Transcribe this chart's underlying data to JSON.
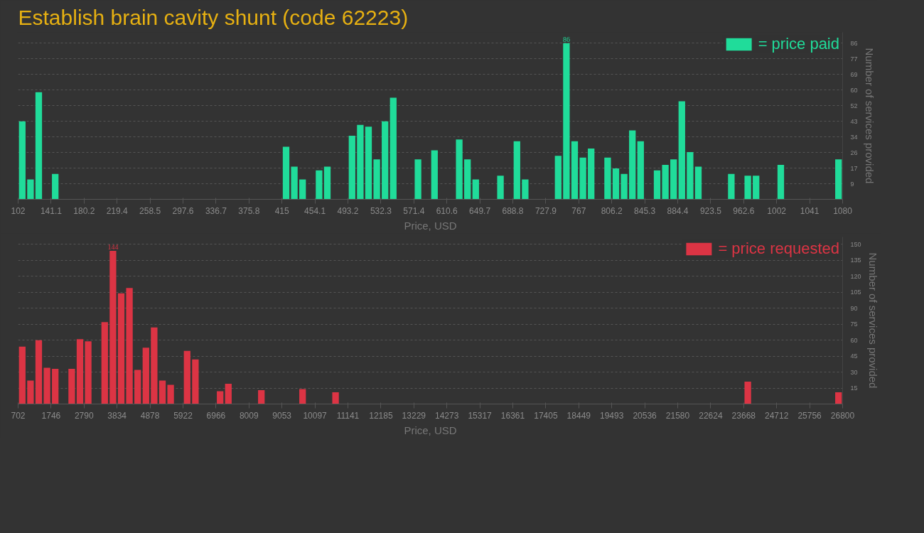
{
  "chart_data": [
    {
      "type": "histogram",
      "title": "Establish brain cavity shunt (code 62223)",
      "xlabel": "Price, USD",
      "ylabel": "Number of services provided",
      "bins": [
        102,
        111.78,
        121.56,
        131.34,
        141.12,
        150.9,
        160.68,
        170.46,
        180.24,
        190.02,
        199.8,
        209.58,
        219.36,
        229.14,
        238.92,
        248.7,
        258.48,
        268.26,
        278.04,
        287.82,
        297.6,
        307.38,
        317.16,
        326.94,
        336.72,
        346.5,
        356.28,
        366.06,
        375.84,
        385.62,
        395.4,
        405.18,
        414.96,
        424.74,
        434.52,
        444.3,
        454.08,
        463.86,
        473.64,
        483.42,
        493.2,
        502.98,
        512.76,
        522.54,
        532.32,
        542.1,
        551.88,
        561.66,
        571.44,
        581.22,
        591,
        600.78,
        610.56,
        620.34,
        630.12,
        639.9,
        649.68,
        659.46,
        669.24,
        679.02,
        688.8,
        698.58,
        708.36,
        718.14,
        727.92,
        737.7,
        747.48,
        757.26,
        767.04,
        776.82,
        786.6,
        796.38,
        806.16,
        815.94,
        825.72,
        835.5,
        845.28,
        855.06,
        864.84,
        874.62,
        884.4,
        894.18,
        903.96,
        913.74,
        923.52,
        933.3,
        943.08,
        952.86,
        962.64,
        972.42,
        982.2,
        991.98,
        1001.76,
        1011.54,
        1021.32,
        1031.1,
        1040.88,
        1050.66,
        1060.44,
        1070.22,
        1080
      ],
      "series": [
        {
          "name": "= price paid",
          "color": "#20dc9a",
          "values": [
            43,
            11,
            59,
            0,
            14,
            0,
            0,
            0,
            0,
            0,
            0,
            0,
            0,
            0,
            0,
            0,
            0,
            0,
            0,
            0,
            0,
            0,
            0,
            0,
            0,
            0,
            0,
            0,
            0,
            0,
            0,
            0,
            29,
            18,
            11,
            0,
            16,
            18,
            0,
            0,
            35,
            41,
            40,
            22,
            43,
            56,
            0,
            0,
            22,
            0,
            27,
            0,
            0,
            33,
            22,
            11,
            0,
            0,
            13,
            0,
            32,
            11,
            0,
            0,
            0,
            24,
            86,
            32,
            23,
            28,
            0,
            23,
            17,
            14,
            38,
            32,
            0,
            16,
            19,
            22,
            54,
            26,
            18,
            0,
            0,
            0,
            14,
            0,
            13,
            13,
            0,
            0,
            19,
            0,
            0,
            0,
            0,
            0,
            0,
            22
          ],
          "value_labels": [
            null,
            null,
            null,
            null,
            null,
            null,
            null,
            null,
            null,
            null,
            null,
            null,
            null,
            null,
            null,
            null,
            null,
            null,
            null,
            null,
            null,
            null,
            null,
            null,
            null,
            null,
            null,
            null,
            null,
            null,
            null,
            null,
            null,
            null,
            null,
            null,
            null,
            null,
            null,
            null,
            null,
            null,
            null,
            null,
            null,
            null,
            null,
            null,
            null,
            null,
            null,
            null,
            null,
            null,
            null,
            null,
            null,
            null,
            null,
            null,
            null,
            null,
            null,
            null,
            null,
            null,
            "86",
            null,
            null,
            null,
            null,
            null,
            null,
            null,
            null,
            null,
            null,
            null,
            null,
            null,
            null,
            null,
            null,
            null,
            null,
            null,
            null,
            null,
            null,
            null,
            null,
            null,
            null,
            null,
            null,
            null,
            null,
            null,
            null,
            null
          ]
        }
      ],
      "xlim": [
        102,
        1080
      ],
      "xticks": [
        102,
        {
          "value": 141.12,
          "label": "141.1"
        },
        {
          "value": 180.24,
          "label": "180.2"
        },
        {
          "value": 219.36,
          "label": "219.4"
        },
        {
          "value": 258.48,
          "label": "258.5"
        },
        {
          "value": 297.6,
          "label": "297.6"
        },
        {
          "value": 336.72,
          "label": "336.7"
        },
        {
          "value": 375.84,
          "label": "375.8"
        },
        {
          "value": 414.96,
          "label": "415"
        },
        {
          "value": 454.08,
          "label": "454.1"
        },
        {
          "value": 493.2,
          "label": "493.2"
        },
        {
          "value": 532.32,
          "label": "532.3"
        },
        {
          "value": 571.44,
          "label": "571.4"
        },
        {
          "value": 610.56,
          "label": "610.6"
        },
        {
          "value": 649.68,
          "label": "649.7"
        },
        {
          "value": 688.8,
          "label": "688.8"
        },
        {
          "value": 727.92,
          "label": "727.9"
        },
        {
          "value": 767.04,
          "label": "767"
        },
        {
          "value": 806.16,
          "label": "806.2"
        },
        {
          "value": 845.28,
          "label": "845.3"
        },
        {
          "value": 884.4,
          "label": "884.4"
        },
        {
          "value": 923.52,
          "label": "923.5"
        },
        {
          "value": 962.64,
          "label": "962.6"
        },
        {
          "value": 1001.76,
          "label": "1002"
        },
        {
          "value": 1040.88,
          "label": "1041"
        },
        1080
      ],
      "ylim": [
        0,
        92
      ],
      "yticks": [
        {
          "value": 8.6,
          "label": "9"
        },
        {
          "value": 17.2,
          "label": "17"
        },
        {
          "value": 25.8,
          "label": "26"
        },
        {
          "value": 34.4,
          "label": "34"
        },
        43,
        {
          "value": 51.6,
          "label": "52"
        },
        {
          "value": 60.2,
          "label": "60"
        },
        {
          "value": 68.8,
          "label": "69"
        },
        {
          "value": 77.4,
          "label": "77"
        },
        86
      ],
      "grid": "y",
      "legend": "top right"
    },
    {
      "type": "histogram",
      "xlabel": "Price, USD",
      "ylabel": "Number of services provided",
      "bins": [
        702,
        962.98,
        1223.96,
        1484.94,
        1745.92,
        2006.9,
        2267.88,
        2528.86,
        2789.84,
        3050.82,
        3311.8,
        3572.78,
        3833.76,
        4094.74,
        4355.72,
        4616.7,
        4877.68,
        5138.66,
        5399.64,
        5660.62,
        5921.6,
        6182.58,
        6443.56,
        6704.54,
        6965.52,
        7226.5,
        7487.48,
        7748.46,
        8009.44,
        8270.42,
        8531.4,
        8792.38,
        9053.36,
        9314.34,
        9575.32,
        9836.3,
        10097.28,
        10358.26,
        10619.24,
        10880.22,
        11141.2,
        11402.18,
        11663.16,
        11924.14,
        12185.12,
        12446.1,
        12707.08,
        12968.06,
        13229.04,
        13490.02,
        13751,
        14011.98,
        14272.96,
        14533.94,
        14794.92,
        15055.9,
        15316.88,
        15577.86,
        15838.84,
        16099.82,
        16360.8,
        16621.78,
        16882.76,
        17143.74,
        17404.72,
        17665.7,
        17926.68,
        18187.66,
        18448.64,
        18709.62,
        18970.6,
        19231.58,
        19492.56,
        19753.54,
        20014.52,
        20275.5,
        20536.48,
        20797.46,
        21058.44,
        21319.42,
        21580.4,
        21841.38,
        22102.36,
        22363.34,
        22624.32,
        22885.3,
        23146.28,
        23407.26,
        23668.24,
        23929.22,
        24190.2,
        24451.18,
        24712.16,
        24973.14,
        25234.12,
        25495.1,
        25756.08,
        26017.06,
        26278.04,
        26539.02,
        26800
      ],
      "series": [
        {
          "name": "= price requested",
          "color": "#dc3444",
          "values": [
            54,
            22,
            60,
            34,
            33,
            0,
            33,
            61,
            59,
            0,
            77,
            144,
            104,
            109,
            32,
            53,
            72,
            22,
            18,
            0,
            50,
            42,
            0,
            0,
            12,
            19,
            0,
            0,
            0,
            13,
            0,
            0,
            0,
            0,
            14,
            0,
            0,
            0,
            11,
            0,
            0,
            0,
            0,
            0,
            0,
            0,
            0,
            0,
            0,
            0,
            0,
            0,
            0,
            0,
            0,
            0,
            0,
            0,
            0,
            0,
            0,
            0,
            0,
            0,
            0,
            0,
            0,
            0,
            0,
            0,
            0,
            0,
            0,
            0,
            0,
            0,
            0,
            0,
            0,
            0,
            0,
            0,
            0,
            0,
            0,
            0,
            0,
            0,
            21,
            0,
            0,
            0,
            0,
            0,
            0,
            0,
            0,
            0,
            0,
            11
          ],
          "value_labels": [
            null,
            null,
            null,
            null,
            null,
            null,
            null,
            null,
            null,
            null,
            null,
            "144",
            null,
            null,
            null,
            null,
            null,
            null,
            null,
            null,
            null,
            null,
            null,
            null,
            null,
            null,
            null,
            null,
            null,
            null,
            null,
            null,
            null,
            null,
            null,
            null,
            null,
            null,
            null,
            null,
            null,
            null,
            null,
            null,
            null,
            null,
            null,
            null,
            null,
            null,
            null,
            null,
            null,
            null,
            null,
            null,
            null,
            null,
            null,
            null,
            null,
            null,
            null,
            null,
            null,
            null,
            null,
            null,
            null,
            null,
            null,
            null,
            null,
            null,
            null,
            null,
            null,
            null,
            null,
            null,
            null,
            null,
            null,
            null,
            null,
            null,
            null,
            null,
            null,
            null,
            null,
            null,
            null,
            null,
            null,
            null,
            null,
            null,
            null,
            null
          ]
        }
      ],
      "xlim": [
        702,
        26800
      ],
      "xticks": [
        702,
        {
          "value": 1745.92,
          "label": "1746"
        },
        {
          "value": 2789.84,
          "label": "2790"
        },
        {
          "value": 3833.76,
          "label": "3834"
        },
        {
          "value": 4877.68,
          "label": "4878"
        },
        {
          "value": 5921.6,
          "label": "5922"
        },
        {
          "value": 6965.52,
          "label": "6966"
        },
        {
          "value": 8009.44,
          "label": "8009"
        },
        {
          "value": 9053.36,
          "label": "9053"
        },
        {
          "value": 10097.28,
          "label": "10097"
        },
        {
          "value": 11141.2,
          "label": "11141"
        },
        {
          "value": 12185.12,
          "label": "12185"
        },
        {
          "value": 13229.04,
          "label": "13229"
        },
        {
          "value": 14272.96,
          "label": "14273"
        },
        {
          "value": 15316.88,
          "label": "15317"
        },
        {
          "value": 16360.8,
          "label": "16361"
        },
        {
          "value": 17404.72,
          "label": "17405"
        },
        {
          "value": 18448.64,
          "label": "18449"
        },
        {
          "value": 19492.56,
          "label": "19493"
        },
        {
          "value": 20536.48,
          "label": "20536"
        },
        {
          "value": 21580.4,
          "label": "21580"
        },
        {
          "value": 22624.32,
          "label": "22624"
        },
        {
          "value": 23668.24,
          "label": "23668"
        },
        {
          "value": 24712.16,
          "label": "24712"
        },
        {
          "value": 25756.08,
          "label": "25756"
        },
        26800
      ],
      "ylim": [
        0,
        157
      ],
      "yticks": [
        15,
        30,
        45,
        60,
        75,
        90,
        105,
        120,
        135,
        150
      ],
      "grid": "y",
      "legend": "top right"
    }
  ]
}
